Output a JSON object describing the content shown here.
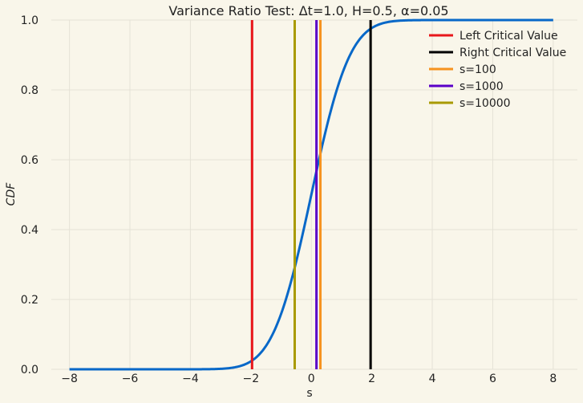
{
  "chart_data": {
    "type": "line",
    "title": "Variance Ratio Test: Δt=1.0, H=0.5, α=0.05",
    "xlabel": "s",
    "ylabel": "CDF",
    "xlim": [
      -8.6,
      8.8
    ],
    "ylim": [
      0.0,
      1.0
    ],
    "xticks": [
      -8,
      -6,
      -4,
      -2,
      0,
      2,
      4,
      6,
      8
    ],
    "yticks": [
      0.0,
      0.2,
      0.4,
      0.6,
      0.8,
      1.0
    ],
    "xtick_labels": [
      "−8",
      "−6",
      "−4",
      "−2",
      "0",
      "2",
      "4",
      "6",
      "8"
    ],
    "ytick_labels": [
      "0.0",
      "0.2",
      "0.4",
      "0.6",
      "0.8",
      "1.0"
    ],
    "grid": true,
    "legend_position": "top-right",
    "curve": {
      "color": "#0868c8",
      "x": [
        -8.0,
        -3.0,
        -2.5,
        -2.0,
        -1.5,
        -1.0,
        -0.5,
        0.0,
        0.5,
        1.0,
        1.5,
        2.0,
        2.5,
        3.0,
        8.0
      ],
      "y": [
        0.0,
        0.0013,
        0.0062,
        0.0228,
        0.0668,
        0.1587,
        0.3085,
        0.5,
        0.6915,
        0.8413,
        0.9332,
        0.9772,
        0.9938,
        0.9987,
        1.0
      ]
    },
    "vertical_lines": [
      {
        "name": "Left Critical Value",
        "x": -1.96,
        "color": "#e8171b"
      },
      {
        "name": "Right Critical Value",
        "x": 1.96,
        "color": "#000000"
      },
      {
        "name": "s=100",
        "x": 0.3,
        "color": "#f6931f"
      },
      {
        "name": "s=1000",
        "x": 0.17,
        "color": "#5a00c8"
      },
      {
        "name": "s=10000",
        "x": -0.55,
        "color": "#a99a00"
      }
    ]
  }
}
